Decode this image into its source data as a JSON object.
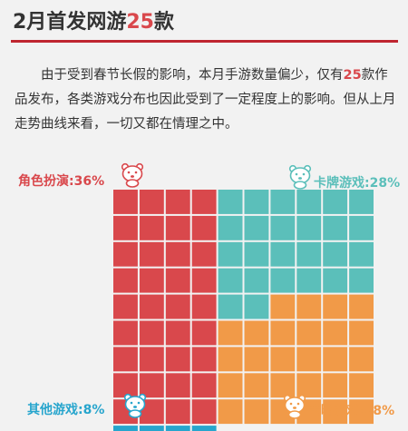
{
  "header": {
    "title_a": "2月首发",
    "title_b": "网游",
    "title_num": "25",
    "title_c": "款"
  },
  "intro": {
    "p1": "由于受到春节长假的影响，本月手游数量偏少，仅有",
    "num": "25",
    "p2": "款作品发布，各类游戏分布也因此受到了一定程度上的影响。但从上月走势曲线来看，一切又都在情理之中。"
  },
  "chart_data": {
    "type": "waffle",
    "grid": [
      10,
      10
    ],
    "categories": [
      "角色扮演",
      "卡牌游戏",
      "策略游戏",
      "其他游戏"
    ],
    "values": [
      36,
      28,
      28,
      8
    ],
    "unit": "%",
    "labels": [
      "角色扮演:36%",
      "卡牌游戏:28%",
      "策略游戏:28%",
      "其他游戏:8%"
    ],
    "colors": [
      "#d9484c",
      "#5bbfba",
      "#f19a48",
      "#27a5cd"
    ],
    "icon": "bear-icon"
  }
}
